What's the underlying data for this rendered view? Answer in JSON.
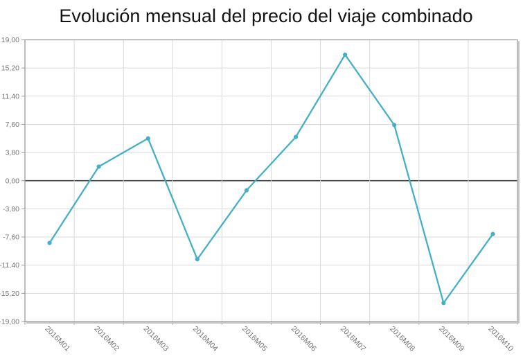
{
  "title": "Evolución mensual del precio del viaje combinado",
  "colors": {
    "line": "#44b0c8",
    "grid": "#d9d9d9",
    "zero_line": "#4a4a4a",
    "border": "#999999",
    "border_shadow": "#c4c4c4",
    "axis_text": "#757575",
    "title_text": "#141414",
    "background": "#ffffff"
  },
  "chart_data": {
    "type": "line",
    "title": "Evolución mensual del precio del viaje combinado",
    "categories": [
      "2016M01",
      "2016M02",
      "2016M03",
      "2016M04",
      "2016M05",
      "2016M06",
      "2016M07",
      "2016M08",
      "2016M09",
      "2016M10"
    ],
    "series": [
      {
        "name": "Evolución mensual del precio del viaje combinado",
        "values": [
          -8.4,
          1.9,
          5.7,
          -10.6,
          -1.3,
          5.9,
          17.0,
          7.5,
          -16.5,
          -7.2
        ]
      }
    ],
    "xlabel": "",
    "ylabel": "",
    "ylim": [
      -19,
      19
    ],
    "ytick_interval": 3.8,
    "ytick_labels": [
      "19,00",
      "15,20",
      "11,40",
      "7,60",
      "3,80",
      "0,00",
      "-3,80",
      "-7,60",
      "-11,40",
      "-15,20",
      "-19,00"
    ],
    "grid": true,
    "zero_line": true,
    "legend_position": "none",
    "marker": "circle"
  }
}
